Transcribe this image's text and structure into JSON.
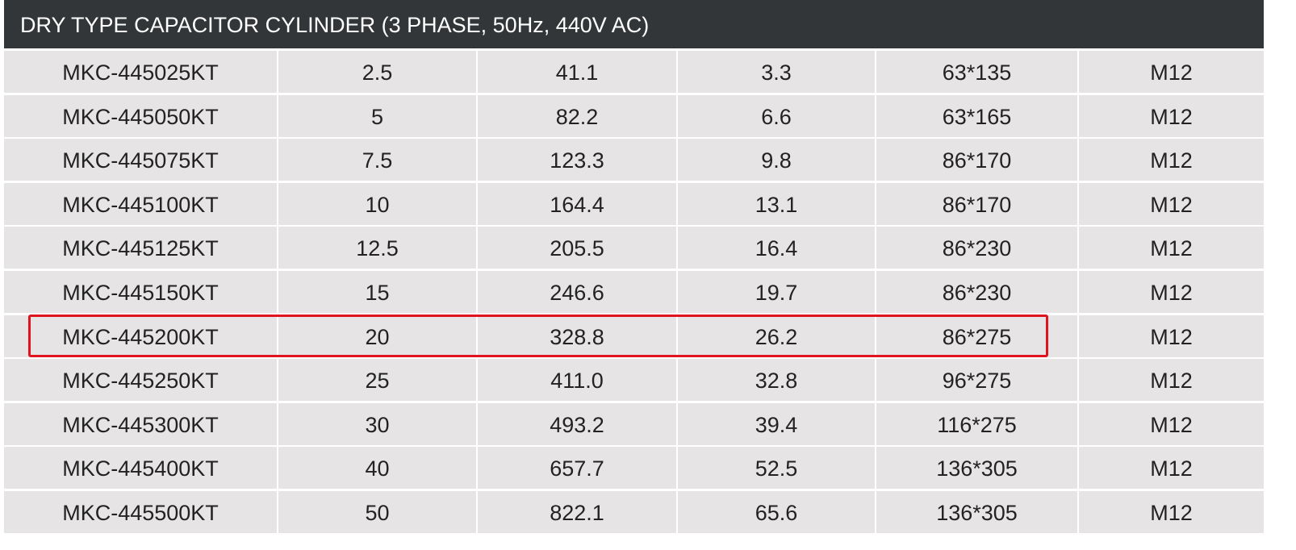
{
  "header": {
    "title": "DRY TYPE CAPACITOR CYLINDER (3 PHASE, 50Hz, 440V AC)"
  },
  "table": {
    "rows": [
      [
        "MKC-445025KT",
        "2.5",
        "41.1",
        "3.3",
        "63*135",
        "M12"
      ],
      [
        "MKC-445050KT",
        "5",
        "82.2",
        "6.6",
        "63*165",
        "M12"
      ],
      [
        "MKC-445075KT",
        "7.5",
        "123.3",
        "9.8",
        "86*170",
        "M12"
      ],
      [
        "MKC-445100KT",
        "10",
        "164.4",
        "13.1",
        "86*170",
        "M12"
      ],
      [
        "MKC-445125KT",
        "12.5",
        "205.5",
        "16.4",
        "86*230",
        "M12"
      ],
      [
        "MKC-445150KT",
        "15",
        "246.6",
        "19.7",
        "86*230",
        "M12"
      ],
      [
        "MKC-445200KT",
        "20",
        "328.8",
        "26.2",
        "86*275",
        "M12"
      ],
      [
        "MKC-445250KT",
        "25",
        "411.0",
        "32.8",
        "96*275",
        "M12"
      ],
      [
        "MKC-445300KT",
        "30",
        "493.2",
        "39.4",
        "116*275",
        "M12"
      ],
      [
        "MKC-445400KT",
        "40",
        "657.7",
        "52.5",
        "136*305",
        "M12"
      ],
      [
        "MKC-445500KT",
        "50",
        "822.1",
        "65.6",
        "136*305",
        "M12"
      ]
    ]
  }
}
